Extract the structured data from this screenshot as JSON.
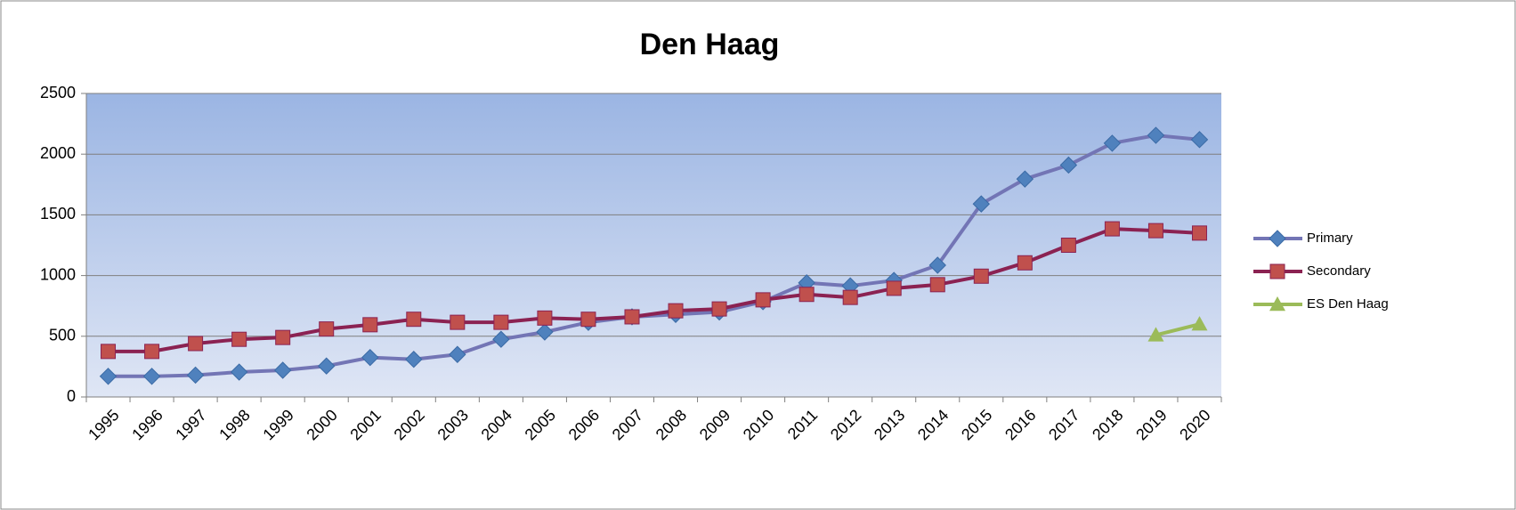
{
  "chart_data": {
    "type": "line",
    "title": "Den Haag",
    "categories": [
      "1995",
      "1996",
      "1997",
      "1998",
      "1999",
      "2000",
      "2001",
      "2002",
      "2003",
      "2004",
      "2005",
      "2006",
      "2007",
      "2008",
      "2009",
      "2010",
      "2011",
      "2012",
      "2013",
      "2014",
      "2015",
      "2016",
      "2017",
      "2018",
      "2019",
      "2020"
    ],
    "series": [
      {
        "name": "Primary",
        "color": "#7375b5",
        "marker": "diamond",
        "marker_color": "#4f81bd",
        "values": [
          170,
          170,
          180,
          205,
          220,
          255,
          325,
          310,
          350,
          475,
          535,
          615,
          660,
          680,
          700,
          785,
          940,
          915,
          960,
          1085,
          1590,
          1795,
          1910,
          2090,
          2155,
          2120
        ]
      },
      {
        "name": "Secondary",
        "color": "#8b2252",
        "marker": "square",
        "marker_color": "#c0504d",
        "values": [
          375,
          375,
          440,
          475,
          490,
          560,
          595,
          640,
          615,
          615,
          650,
          640,
          660,
          710,
          725,
          800,
          845,
          820,
          895,
          925,
          995,
          1105,
          1250,
          1385,
          1370,
          1350
        ]
      },
      {
        "name": "ES Den Haag",
        "color": "#9bbb59",
        "marker": "triangle",
        "marker_color": "#9bbb59",
        "values": [
          null,
          null,
          null,
          null,
          null,
          null,
          null,
          null,
          null,
          null,
          null,
          null,
          null,
          null,
          null,
          null,
          null,
          null,
          null,
          null,
          null,
          null,
          null,
          null,
          510,
          600
        ]
      }
    ],
    "ylim": [
      0,
      2500
    ],
    "yticks": [
      0,
      500,
      1000,
      1500,
      2000,
      2500
    ],
    "grid": true,
    "legend": "right"
  }
}
